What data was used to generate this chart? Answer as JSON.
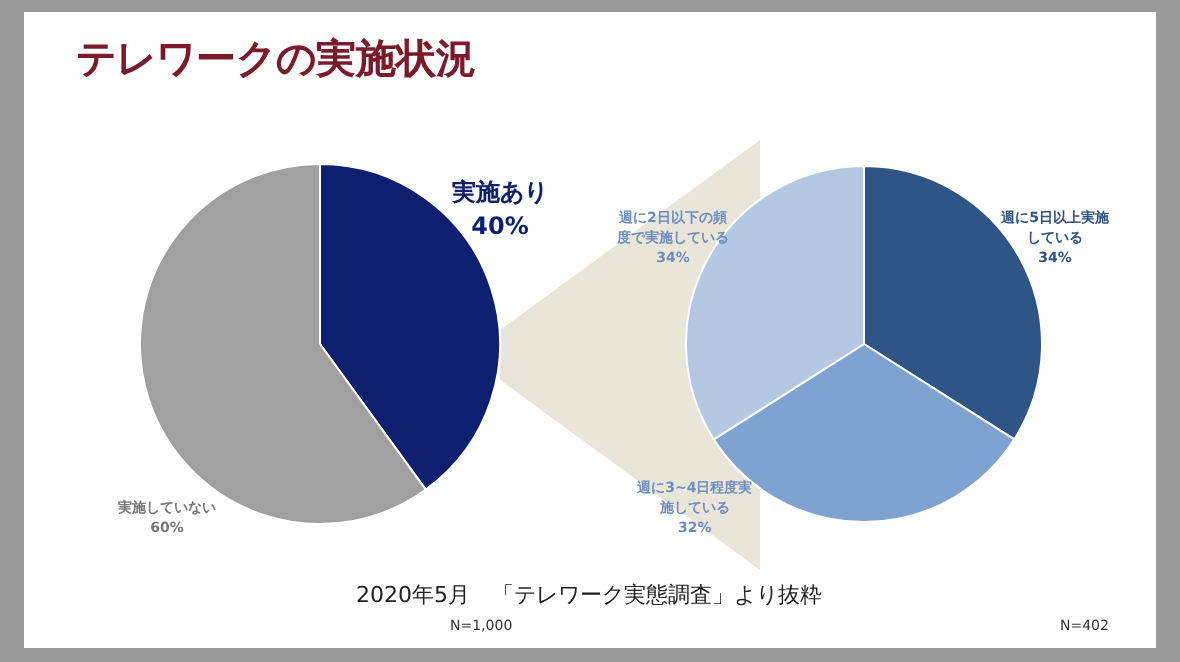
{
  "chart_data": [
    {
      "type": "pie",
      "title": "テレワークの実施状況",
      "categories": [
        "実施あり",
        "実施していない"
      ],
      "values": [
        40,
        60
      ],
      "value_labels": [
        "40%",
        "60%"
      ],
      "colors": [
        "#0d1f6e",
        "#a0a0a0"
      ],
      "annotations": [
        "N=1,000"
      ]
    },
    {
      "type": "pie",
      "categories": [
        "週に5日以上実施している",
        "週に3~4日程度実施している",
        "週に2日以下の頻度で実施している"
      ],
      "values": [
        34,
        32,
        34
      ],
      "value_labels": [
        "34%",
        "32%",
        "34%"
      ],
      "colors": [
        "#2e5586",
        "#7ea3d0",
        "#b3c9e3"
      ],
      "annotations": [
        "2020年5月　「テレワーク実態調査」より抜粋",
        "N=402"
      ]
    }
  ]
}
